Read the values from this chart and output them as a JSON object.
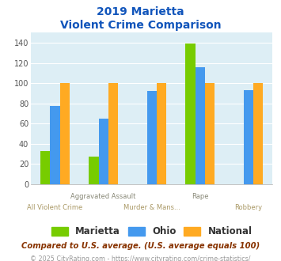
{
  "title_line1": "2019 Marietta",
  "title_line2": "Violent Crime Comparison",
  "series": {
    "Marietta": [
      33,
      27,
      null,
      139,
      null
    ],
    "Ohio": [
      77,
      65,
      92,
      116,
      93
    ],
    "National": [
      100,
      100,
      100,
      100,
      100
    ]
  },
  "colors": {
    "Marietta": "#77cc00",
    "Ohio": "#4499ee",
    "National": "#ffaa22"
  },
  "top_labels": [
    "",
    "Aggravated Assault",
    "",
    "Rape",
    ""
  ],
  "bottom_labels": [
    "All Violent Crime",
    "",
    "Murder & Mans...",
    "",
    "Robbery"
  ],
  "top_label_color": "#888877",
  "bottom_label_color": "#aa9966",
  "ylim": [
    0,
    150
  ],
  "yticks": [
    0,
    20,
    40,
    60,
    80,
    100,
    120,
    140
  ],
  "plot_bg": "#ddeef5",
  "title_color": "#1155bb",
  "grid_color": "#ffffff",
  "bar_width": 0.2,
  "footer_note": "Compared to U.S. average. (U.S. average equals 100)",
  "footer_copyright": "© 2025 CityRating.com - https://www.cityrating.com/crime-statistics/",
  "footer_note_color": "#883300",
  "footer_copyright_color": "#999999",
  "legend_text_color": "#333333"
}
